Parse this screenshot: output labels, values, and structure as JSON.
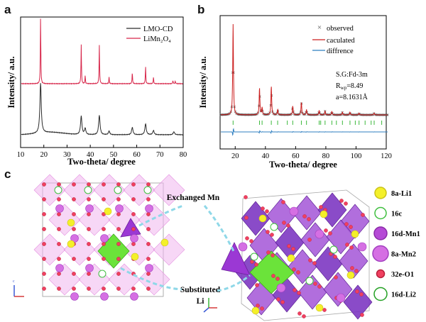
{
  "panels": {
    "a": {
      "letter": "a",
      "chart_data": {
        "type": "line",
        "xlabel": "Two-theta/ degree",
        "ylabel": "Intensity/ a.u.",
        "xlim": [
          10,
          80
        ],
        "x_ticks": [
          10,
          20,
          30,
          40,
          50,
          60,
          70,
          80
        ],
        "series": [
          {
            "name": "LMO-CD",
            "color": "#2b2b2b",
            "peaks": [
              [
                18.6,
                0.82
              ],
              [
                36.1,
                0.3
              ],
              [
                37.8,
                0.1
              ],
              [
                43.9,
                0.32
              ],
              [
                48.1,
                0.06
              ],
              [
                58.1,
                0.12
              ],
              [
                63.8,
                0.18
              ],
              [
                67.2,
                0.07
              ],
              [
                76.0,
                0.05
              ]
            ]
          },
          {
            "name": "LiMn2O4",
            "color": "#d7264a",
            "peaks": [
              [
                18.6,
                1.0
              ],
              [
                36.1,
                0.58
              ],
              [
                37.8,
                0.12
              ],
              [
                43.9,
                0.58
              ],
              [
                48.1,
                0.1
              ],
              [
                58.1,
                0.17
              ],
              [
                63.8,
                0.26
              ],
              [
                67.2,
                0.1
              ],
              [
                75.6,
                0.05
              ],
              [
                76.6,
                0.04
              ]
            ]
          }
        ]
      },
      "legend": [
        {
          "label": "LMO-CD",
          "color": "#2b2b2b"
        },
        {
          "label": "LiMn₂O₄",
          "color": "#d7264a"
        }
      ]
    },
    "b": {
      "letter": "b",
      "chart_data": {
        "type": "line",
        "xlabel": "Two-theta/ degree",
        "ylabel": "Intensity/ a.u.",
        "xlim": [
          10,
          120
        ],
        "x_ticks": [
          20,
          40,
          60,
          80,
          100,
          120
        ],
        "series": [
          {
            "name": "observed",
            "marker": "x",
            "color": "#555555"
          },
          {
            "name": "caculated",
            "color": "#cc1f1f"
          },
          {
            "name": "diffrence",
            "color": "#2f7fc0"
          }
        ],
        "peaks": [
          [
            18.6,
            1.0
          ],
          [
            36.1,
            0.3
          ],
          [
            37.8,
            0.08
          ],
          [
            43.9,
            0.32
          ],
          [
            48.1,
            0.06
          ],
          [
            58.1,
            0.1
          ],
          [
            63.8,
            0.14
          ],
          [
            67.2,
            0.06
          ],
          [
            75.6,
            0.05
          ],
          [
            79.5,
            0.04
          ],
          [
            84.0,
            0.04
          ],
          [
            91.0,
            0.03
          ],
          [
            96.0,
            0.03
          ],
          [
            102.0,
            0.02
          ],
          [
            112.0,
            0.02
          ]
        ],
        "bragg_positions": [
          18.6,
          36.1,
          37.8,
          43.9,
          48.1,
          54.5,
          58.1,
          63.8,
          67.2,
          75.6,
          76.6,
          79.5,
          84.0,
          87.0,
          91.0,
          96.0,
          99.5,
          102.0,
          106.0,
          110.0,
          112.0,
          117.0,
          120.5
        ]
      },
      "legend": [
        {
          "label": "observed",
          "color": "#555555",
          "marker": "x"
        },
        {
          "label": "caculated",
          "color": "#cc1f1f"
        },
        {
          "label": "diffrence",
          "color": "#2f7fc0"
        }
      ],
      "annotation": {
        "space_group": "S.G:Fd-3m",
        "rwp_label": "R",
        "rwp_sub": "wp",
        "rwp_value": "=8.49",
        "lattice": "a=8.1631Å"
      }
    },
    "c": {
      "letter": "c",
      "callout_exchanged": "Exchanged Mn",
      "callout_substituted_1": "Substituted",
      "callout_substituted_2": "Li",
      "legend": [
        {
          "label": "8a-Li1",
          "fill": "#f4f02a",
          "stroke": "#c9c21a"
        },
        {
          "label": "16c",
          "fill": "#ffffff",
          "stroke": "#3fbf3f"
        },
        {
          "label": "16d-Mn1",
          "fill": "#b54ad6",
          "stroke": "#8a2aa8"
        },
        {
          "label": "8a-Mn2",
          "fill": "#d56fe3",
          "stroke": "#a23fc0"
        },
        {
          "label": "32e-O1",
          "fill": "#f04060",
          "stroke": "#b81f3b"
        },
        {
          "label": "16d-Li2",
          "fill": "#ffffff",
          "stroke": "#23a023"
        }
      ]
    }
  }
}
